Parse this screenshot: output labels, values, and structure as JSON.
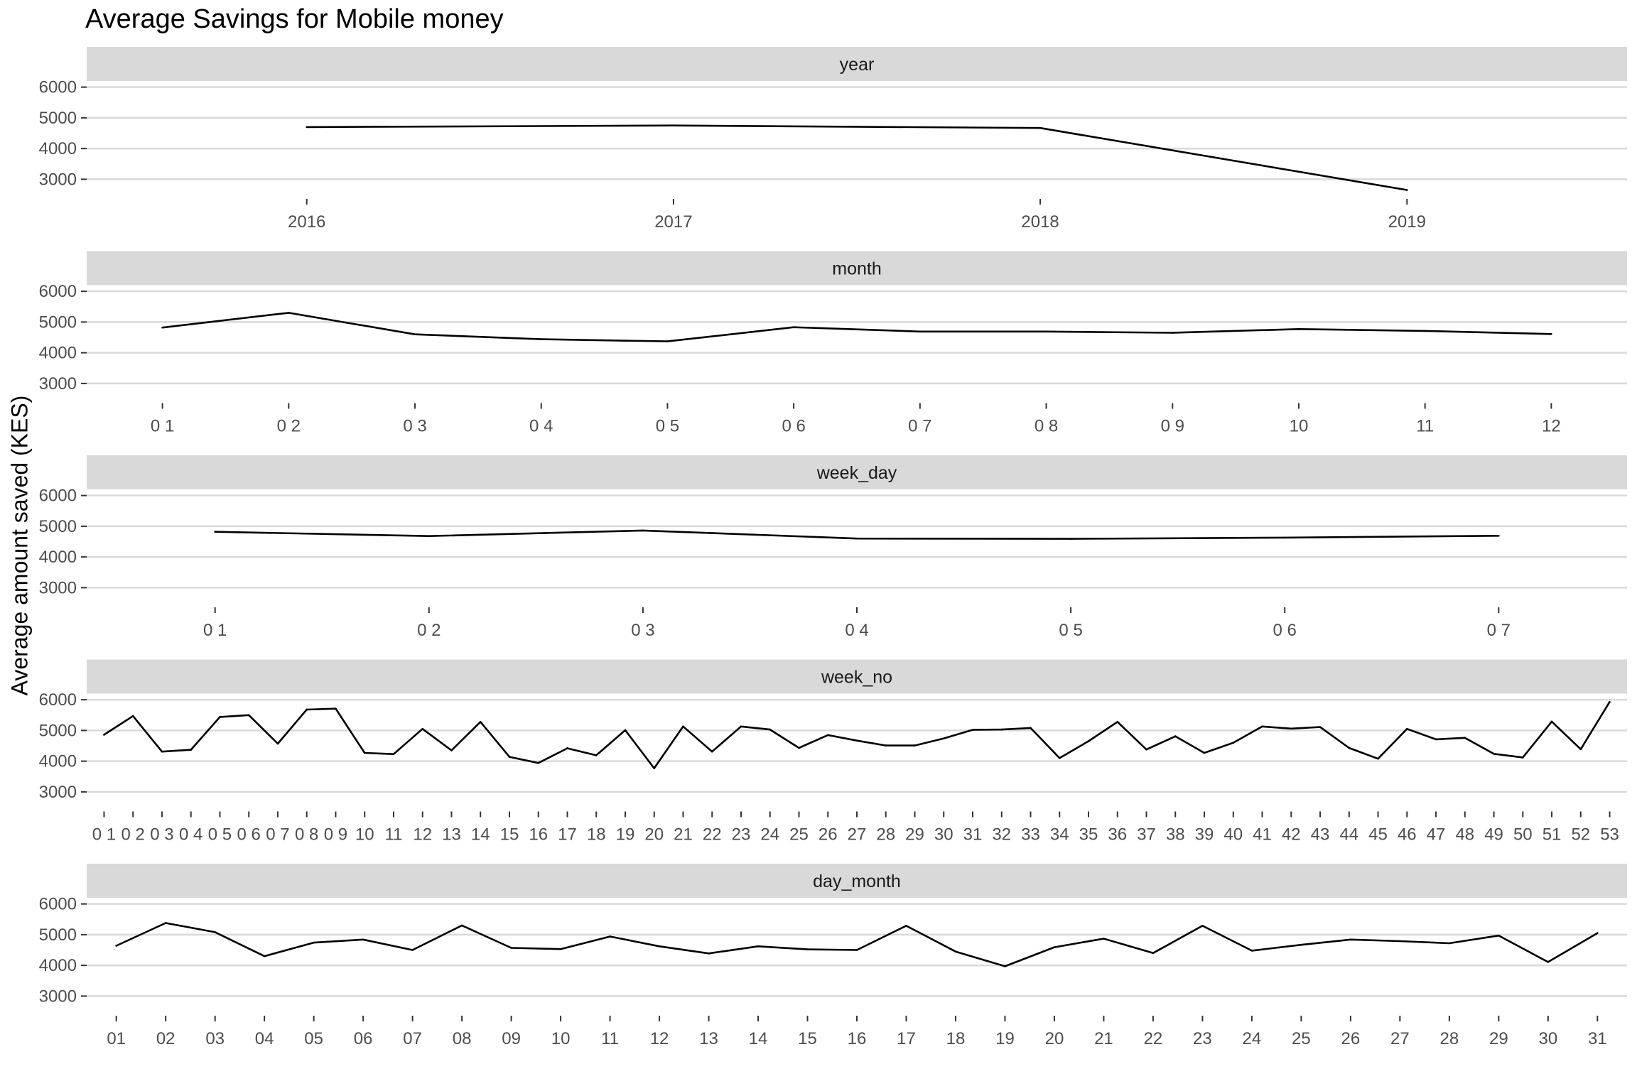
{
  "chart": {
    "title": "Average Savings for Mobile money",
    "ylabel": "Average amount saved (KES)"
  },
  "chart_data": [
    {
      "type": "line",
      "panel": "year",
      "categories": [
        "2016",
        "2017",
        "2018",
        "2019"
      ],
      "values": [
        4700,
        4750,
        4670,
        2650
      ],
      "ylim": [
        2500,
        6200
      ],
      "yticks": [
        3000,
        4000,
        5000,
        6000
      ],
      "grid": true,
      "color": "#000000"
    },
    {
      "type": "line",
      "panel": "month",
      "categories": [
        "0 1",
        "0 2",
        "0 3",
        "0 4",
        "0 5",
        "0 6",
        "0 7",
        "0 8",
        "0 9",
        "10",
        "11",
        "12"
      ],
      "values": [
        4820,
        5300,
        4600,
        4440,
        4370,
        4830,
        4690,
        4690,
        4650,
        4770,
        4710,
        4610
      ],
      "ylim": [
        2500,
        6200
      ],
      "yticks": [
        3000,
        4000,
        5000,
        6000
      ],
      "grid": true,
      "color": "#000000"
    },
    {
      "type": "line",
      "panel": "week_day",
      "categories": [
        "0 1",
        "0 2",
        "0 3",
        "0 4",
        "0 5",
        "0 6",
        "0 7"
      ],
      "values": [
        4820,
        4680,
        4860,
        4600,
        4590,
        4630,
        4690
      ],
      "ylim": [
        2500,
        6200
      ],
      "yticks": [
        3000,
        4000,
        5000,
        6000
      ],
      "grid": true,
      "color": "#000000"
    },
    {
      "type": "line",
      "panel": "week_no",
      "categories": [
        "0 1",
        "0 2",
        "0 3",
        "0 4",
        "0 5",
        "0 6",
        "0 7",
        "0 8",
        "0 9",
        "10",
        "11",
        "12",
        "13",
        "14",
        "15",
        "16",
        "17",
        "18",
        "19",
        "20",
        "21",
        "22",
        "23",
        "24",
        "25",
        "26",
        "27",
        "28",
        "29",
        "30",
        "31",
        "32",
        "33",
        "34",
        "35",
        "36",
        "37",
        "38",
        "39",
        "40",
        "41",
        "42",
        "43",
        "44",
        "45",
        "46",
        "47",
        "48",
        "49",
        "50",
        "51",
        "52",
        "53"
      ],
      "values": [
        4860,
        5470,
        4310,
        4370,
        5440,
        5500,
        4570,
        5680,
        5710,
        4270,
        4230,
        5050,
        4350,
        5280,
        4140,
        3940,
        4420,
        4190,
        5010,
        3770,
        5130,
        4310,
        5130,
        5030,
        4430,
        4850,
        4670,
        4510,
        4510,
        4740,
        5020,
        5030,
        5080,
        4100,
        4650,
        5280,
        4380,
        4810,
        4270,
        4600,
        5130,
        5060,
        5110,
        4430,
        4080,
        5050,
        4710,
        4760,
        4240,
        4120,
        5290,
        4390,
        5930
      ],
      "ylim": [
        2500,
        6200
      ],
      "yticks": [
        3000,
        4000,
        5000,
        6000
      ],
      "grid": true,
      "color": "#000000"
    },
    {
      "type": "line",
      "panel": "day_month",
      "categories": [
        "01",
        "02",
        "03",
        "04",
        "05",
        "06",
        "07",
        "08",
        "09",
        "10",
        "11",
        "12",
        "13",
        "14",
        "15",
        "16",
        "17",
        "18",
        "19",
        "20",
        "21",
        "22",
        "23",
        "24",
        "25",
        "26",
        "27",
        "28",
        "29",
        "30",
        "31"
      ],
      "values": [
        4640,
        5380,
        5080,
        4300,
        4740,
        4840,
        4500,
        5300,
        4570,
        4530,
        4940,
        4620,
        4390,
        4620,
        4520,
        4500,
        5290,
        4450,
        3970,
        4590,
        4870,
        4400,
        5290,
        4480,
        4670,
        4840,
        4790,
        4720,
        4970,
        4110,
        5050
      ],
      "ylim": [
        2500,
        6200
      ],
      "yticks": [
        3000,
        4000,
        5000,
        6000
      ],
      "grid": true,
      "color": "#000000"
    }
  ]
}
